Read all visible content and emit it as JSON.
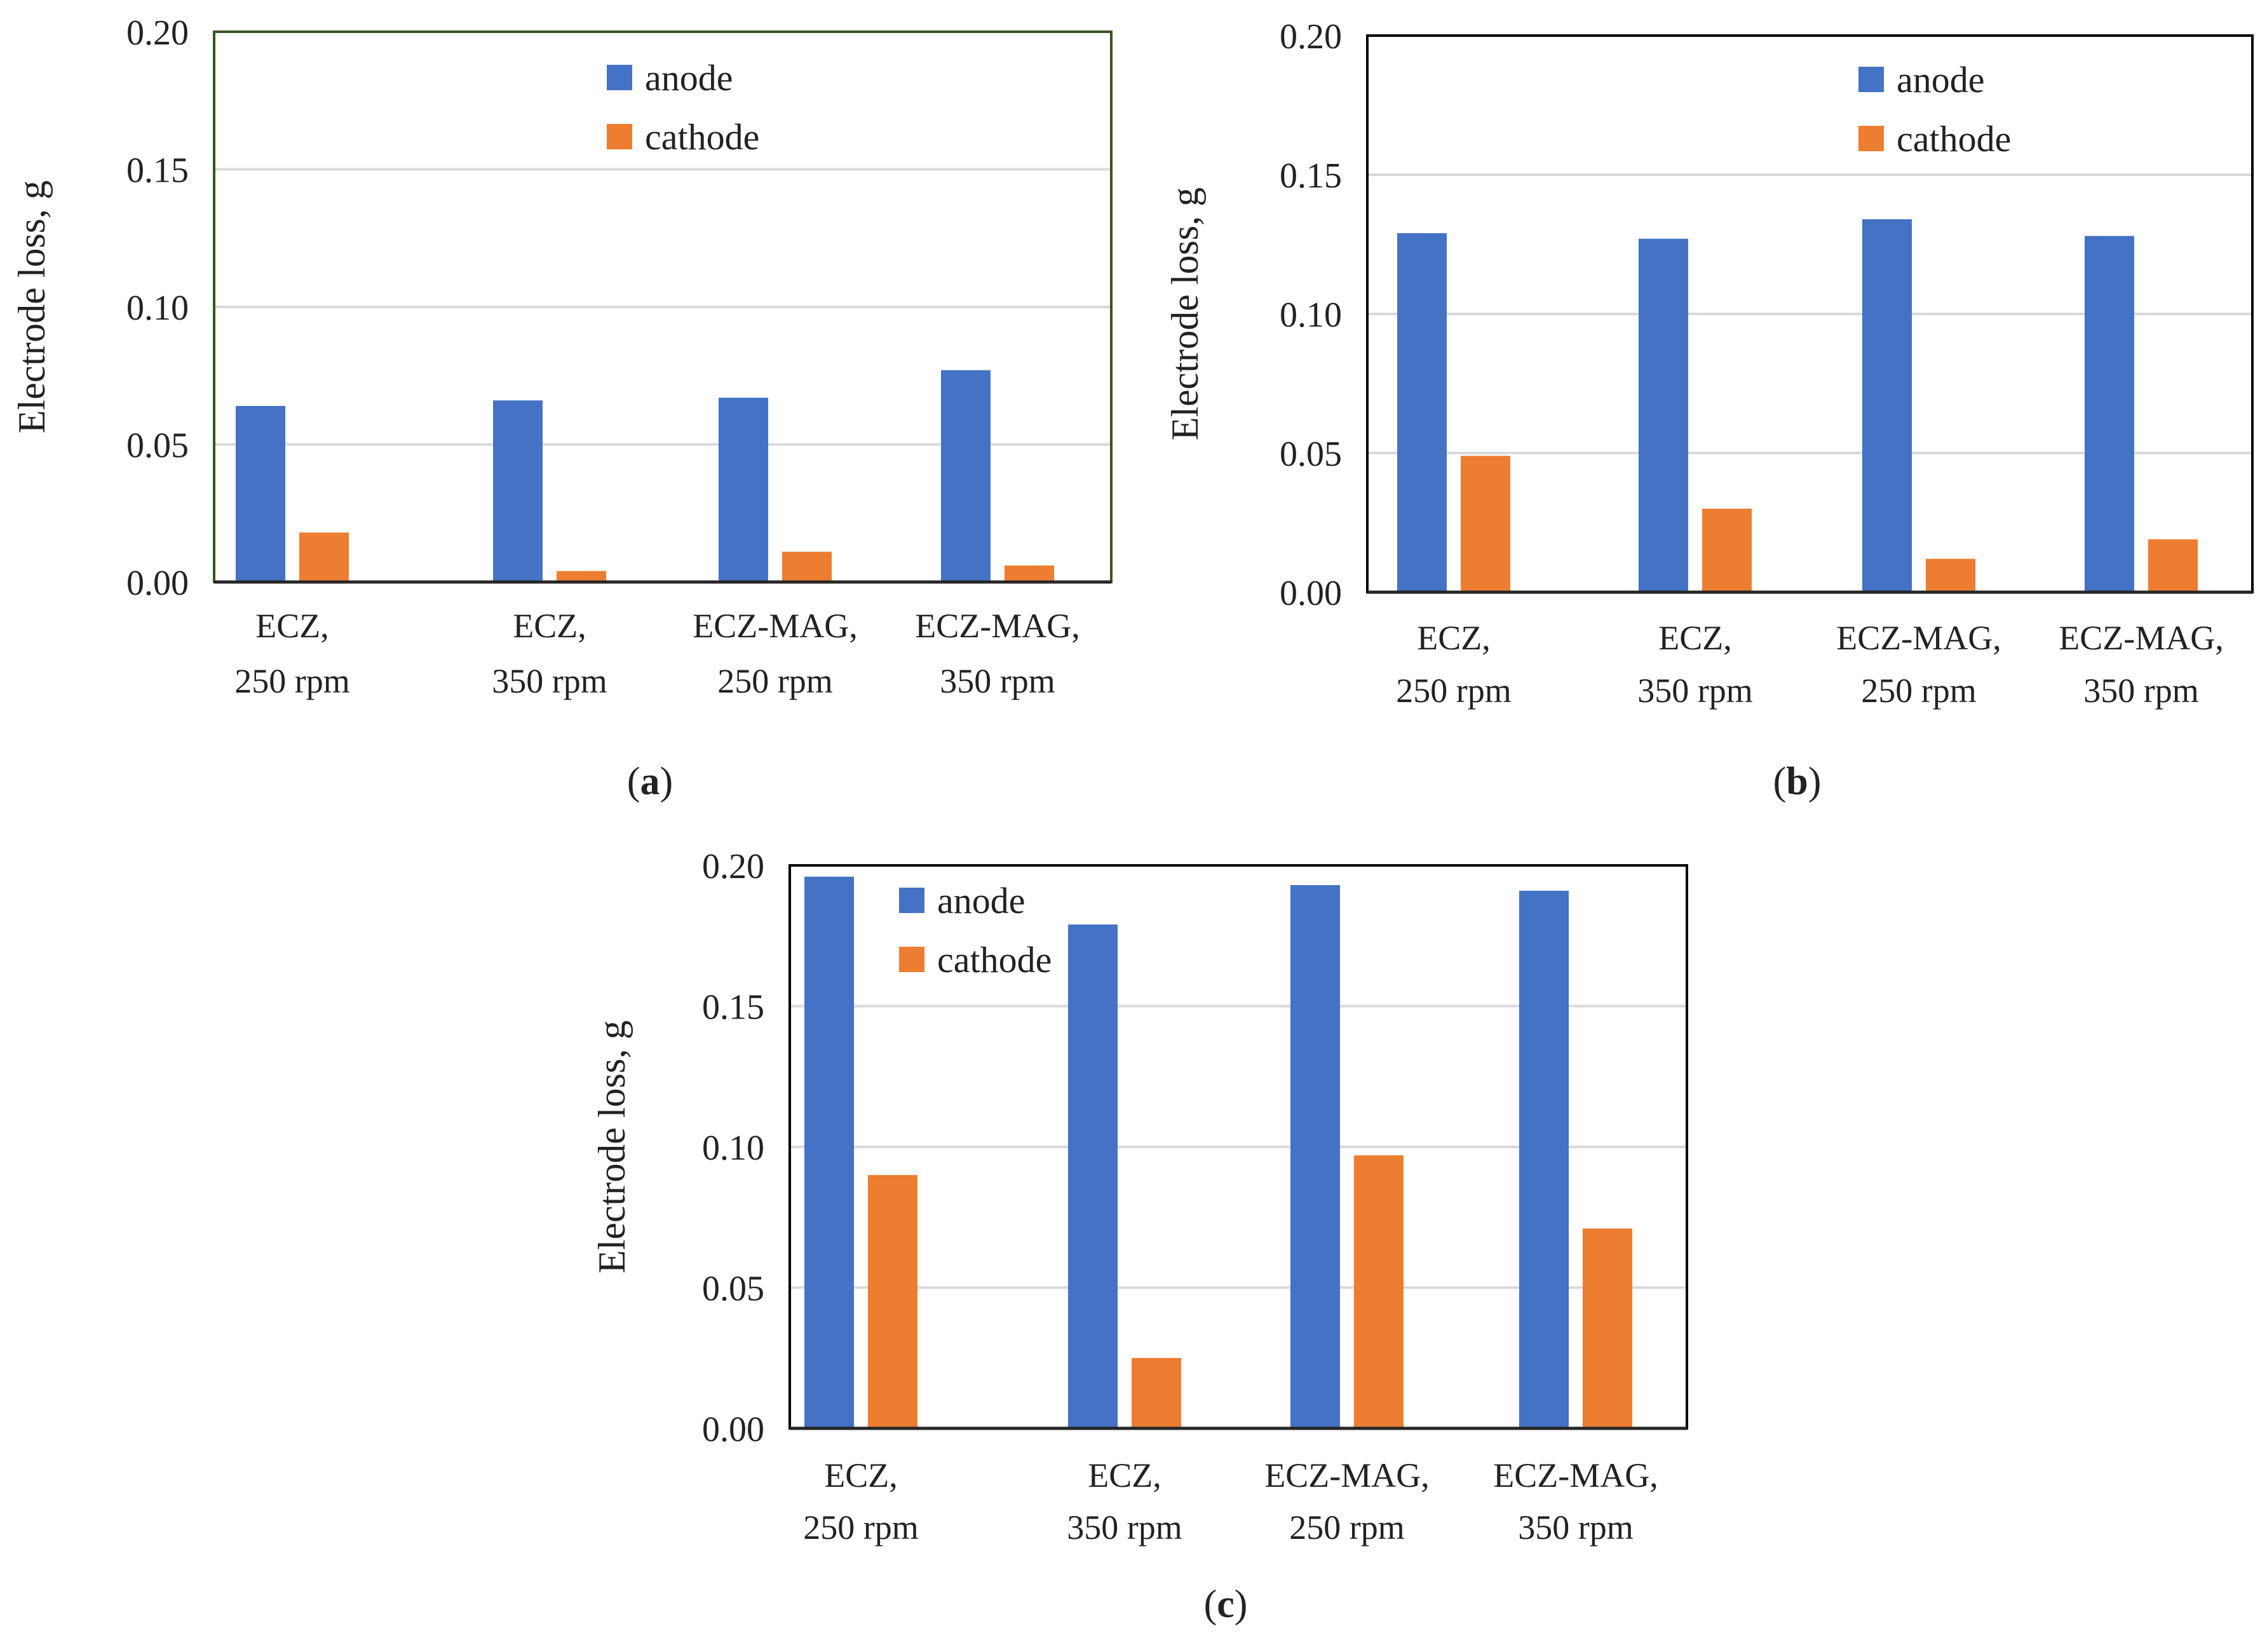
{
  "figure": {
    "colors": {
      "anode": "#4472C4",
      "cathode": "#ED7D31",
      "grid": "#D9D9D9",
      "frame_a": "#375623",
      "frame_b": "#000000",
      "frame_c": "#000000"
    }
  },
  "chart_data": [
    {
      "id": "a",
      "type": "bar",
      "panel_label": "a",
      "ylabel": "Electrode loss, g",
      "ylim": [
        0,
        0.2
      ],
      "yticks": [
        "0.00",
        "0.05",
        "0.10",
        "0.15",
        "0.20"
      ],
      "grid": true,
      "legend_position": "top-center",
      "categories": [
        [
          "ECZ,",
          "250 rpm"
        ],
        [
          "ECZ,",
          "350 rpm"
        ],
        [
          "ECZ-MAG,",
          "250 rpm"
        ],
        [
          "ECZ-MAG,",
          "350 rpm"
        ]
      ],
      "series": [
        {
          "name": "anode",
          "color": "#4472C4",
          "values": [
            0.064,
            0.066,
            0.067,
            0.077
          ]
        },
        {
          "name": "cathode",
          "color": "#ED7D31",
          "values": [
            0.018,
            0.004,
            0.011,
            0.006
          ]
        }
      ]
    },
    {
      "id": "b",
      "type": "bar",
      "panel_label": "b",
      "ylabel": "Electrode loss, g",
      "ylim": [
        0,
        0.2
      ],
      "yticks": [
        "0.00",
        "0.05",
        "0.10",
        "0.15",
        "0.20"
      ],
      "grid": true,
      "legend_position": "top-center",
      "categories": [
        [
          "ECZ,",
          "250 rpm"
        ],
        [
          "ECZ,",
          "350 rpm"
        ],
        [
          "ECZ-MAG,",
          "250 rpm"
        ],
        [
          "ECZ-MAG,",
          "350 rpm"
        ]
      ],
      "series": [
        {
          "name": "anode",
          "color": "#4472C4",
          "values": [
            0.129,
            0.127,
            0.134,
            0.128
          ]
        },
        {
          "name": "cathode",
          "color": "#ED7D31",
          "values": [
            0.049,
            0.03,
            0.012,
            0.019
          ]
        }
      ]
    },
    {
      "id": "c",
      "type": "bar",
      "panel_label": "c",
      "ylabel": "Electrode loss, g",
      "ylim": [
        0,
        0.2
      ],
      "yticks": [
        "0.00",
        "0.05",
        "0.10",
        "0.15",
        "0.20"
      ],
      "grid": true,
      "legend_position": "top-left",
      "categories": [
        [
          "ECZ,",
          "250 rpm"
        ],
        [
          "ECZ,",
          "350 rpm"
        ],
        [
          "ECZ-MAG,",
          "250 rpm"
        ],
        [
          "ECZ-MAG,",
          "350 rpm"
        ]
      ],
      "series": [
        {
          "name": "anode",
          "color": "#4472C4",
          "values": [
            0.196,
            0.179,
            0.193,
            0.191
          ]
        },
        {
          "name": "cathode",
          "color": "#ED7D31",
          "values": [
            0.09,
            0.025,
            0.097,
            0.071
          ]
        }
      ]
    }
  ]
}
